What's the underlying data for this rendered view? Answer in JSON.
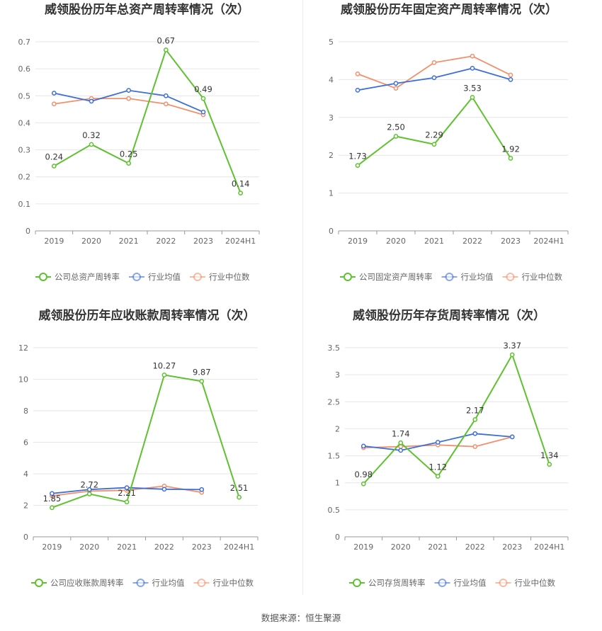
{
  "source_text": "数据来源：恒生聚源",
  "colors": {
    "company": "#5ec12f",
    "avg": "#3d6fd6",
    "median": "#f2906c",
    "grid": "#e6e6e6",
    "axis": "#999999"
  },
  "chart_data": [
    {
      "type": "line",
      "title": "威领股份历年总资产周转率情况（次）",
      "categories": [
        "2019",
        "2020",
        "2021",
        "2022",
        "2023",
        "2024H1"
      ],
      "yticks": [
        "0",
        "0.1",
        "0.2",
        "0.3",
        "0.4",
        "0.5",
        "0.6",
        "0.7"
      ],
      "ylim": [
        0,
        0.7
      ],
      "grid": true,
      "legend_position": "bottom",
      "series": [
        {
          "name": "公司总资产周转率",
          "key": "company",
          "values": [
            0.24,
            0.32,
            0.25,
            0.67,
            0.49,
            0.14
          ],
          "labels": [
            "0.24",
            "0.32",
            "0.25",
            "0.67",
            "0.49",
            "0.14"
          ]
        },
        {
          "name": "行业均值",
          "key": "avg",
          "values": [
            0.51,
            0.48,
            0.52,
            0.5,
            0.44,
            null
          ]
        },
        {
          "name": "行业中位数",
          "key": "median",
          "values": [
            0.47,
            0.49,
            0.49,
            0.47,
            0.43,
            null
          ]
        }
      ]
    },
    {
      "type": "line",
      "title": "威领股份历年固定资产周转率情况（次）",
      "categories": [
        "2019",
        "2020",
        "2021",
        "2022",
        "2023",
        "2024H1"
      ],
      "yticks": [
        "0",
        "1",
        "2",
        "3",
        "4",
        "5"
      ],
      "ylim": [
        0,
        5
      ],
      "grid": true,
      "legend_position": "bottom",
      "series": [
        {
          "name": "公司固定资产周转率",
          "key": "company",
          "values": [
            1.73,
            2.5,
            2.29,
            3.53,
            1.92,
            null
          ],
          "labels": [
            "1.73",
            "2.50",
            "2.29",
            "3.53",
            "1.92",
            null
          ]
        },
        {
          "name": "行业均值",
          "key": "avg",
          "values": [
            3.72,
            3.9,
            4.05,
            4.3,
            4.0,
            null
          ]
        },
        {
          "name": "行业中位数",
          "key": "median",
          "values": [
            4.15,
            3.77,
            4.45,
            4.62,
            4.12,
            null
          ]
        }
      ]
    },
    {
      "type": "line",
      "title": "威领股份历年应收账款周转率情况（次）",
      "categories": [
        "2019",
        "2020",
        "2021",
        "2022",
        "2023",
        "2024H1"
      ],
      "yticks": [
        "0",
        "2",
        "4",
        "6",
        "8",
        "10",
        "12"
      ],
      "ylim": [
        0,
        12
      ],
      "grid": true,
      "legend_position": "bottom",
      "series": [
        {
          "name": "公司应收账款周转率",
          "key": "company",
          "values": [
            1.85,
            2.72,
            2.21,
            10.27,
            9.87,
            2.51
          ],
          "labels": [
            "1.85",
            "2.72",
            "2.21",
            "10.27",
            "9.87",
            "2.51"
          ]
        },
        {
          "name": "行业均值",
          "key": "avg",
          "values": [
            2.75,
            3.0,
            3.12,
            3.02,
            3.0,
            null
          ]
        },
        {
          "name": "行业中位数",
          "key": "median",
          "values": [
            2.6,
            2.9,
            2.95,
            3.22,
            2.82,
            null
          ]
        }
      ]
    },
    {
      "type": "line",
      "title": "威领股份历年存货周转率情况（次）",
      "categories": [
        "2019",
        "2020",
        "2021",
        "2022",
        "2023",
        "2024H1"
      ],
      "yticks": [
        "0",
        "0.5",
        "1",
        "1.5",
        "2",
        "2.5",
        "3",
        "3.5"
      ],
      "ylim": [
        0,
        3.5
      ],
      "grid": true,
      "legend_position": "bottom",
      "series": [
        {
          "name": "公司存货周转率",
          "key": "company",
          "values": [
            0.98,
            1.74,
            1.12,
            2.17,
            3.37,
            1.34
          ],
          "labels": [
            "0.98",
            "1.74",
            "1.12",
            "2.17",
            "3.37",
            "1.34"
          ]
        },
        {
          "name": "行业均值",
          "key": "avg",
          "values": [
            1.68,
            1.6,
            1.75,
            1.91,
            1.85,
            null
          ]
        },
        {
          "name": "行业中位数",
          "key": "median",
          "values": [
            1.65,
            1.67,
            1.7,
            1.67,
            1.85,
            null
          ]
        }
      ]
    }
  ]
}
